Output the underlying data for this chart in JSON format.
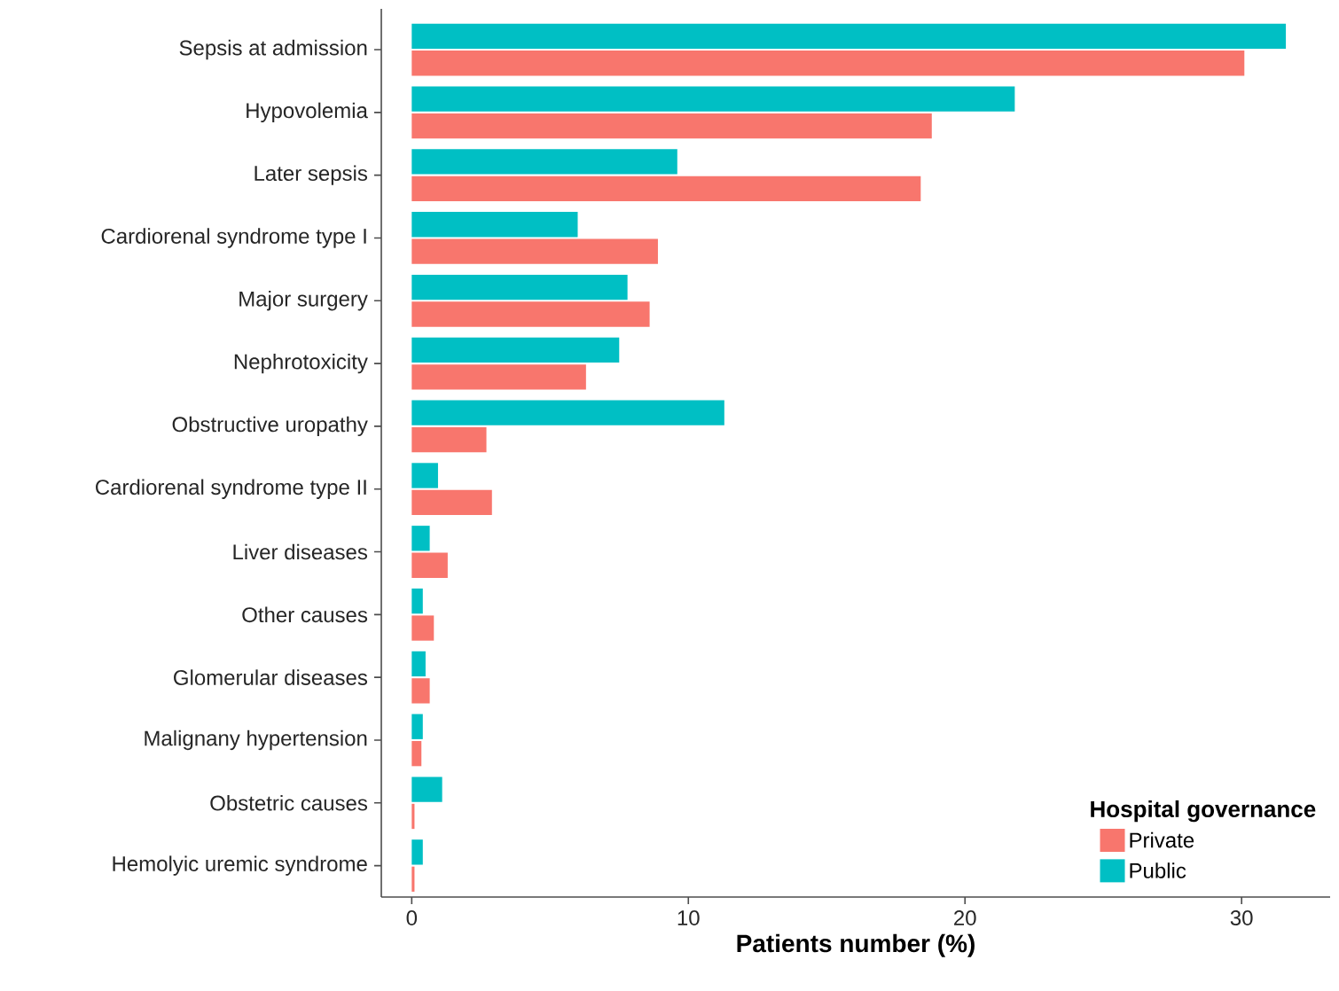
{
  "chart_data": {
    "type": "bar",
    "orientation": "horizontal",
    "xlabel": "Patients number (%)",
    "legend_title": "Hospital governance",
    "categories": [
      "Sepsis at admission",
      "Hypovolemia",
      "Later sepsis",
      "Cardiorenal syndrome type I",
      "Major surgery",
      "Nephrotoxicity",
      "Obstructive uropathy",
      "Cardiorenal syndrome type II",
      "Liver diseases",
      "Other causes",
      "Glomerular diseases",
      "Malignany hypertension",
      "Obstetric causes",
      "Hemolyic uremic syndrome"
    ],
    "series": [
      {
        "name": "Private",
        "color": "#f8766d",
        "values": [
          30.1,
          18.8,
          18.4,
          8.9,
          8.6,
          6.3,
          2.7,
          2.9,
          1.3,
          0.8,
          0.65,
          0.35,
          0.1,
          0.1
        ]
      },
      {
        "name": "Public",
        "color": "#00bfc4",
        "values": [
          31.6,
          21.8,
          9.6,
          6.0,
          7.8,
          7.5,
          11.3,
          0.95,
          0.65,
          0.4,
          0.5,
          0.4,
          1.1,
          0.4
        ]
      }
    ],
    "xlim": [
      -1.1,
      33.2
    ],
    "xticks": [
      0,
      10,
      20,
      30
    ],
    "legend": "bottom right"
  }
}
